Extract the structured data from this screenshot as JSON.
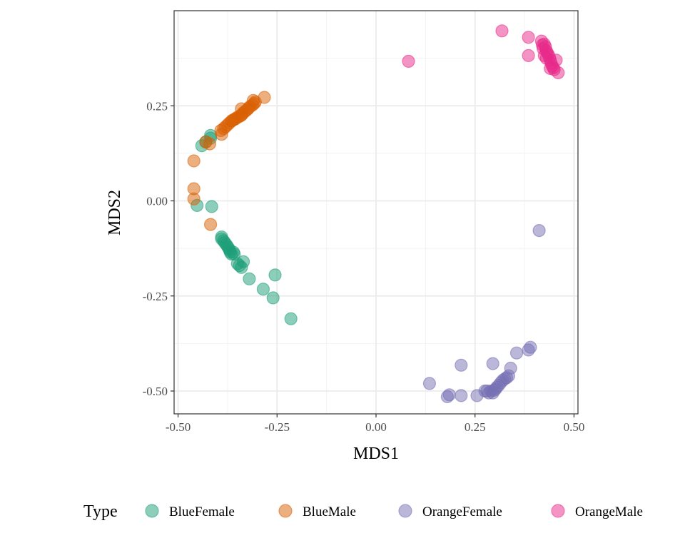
{
  "chart_data": {
    "type": "scatter",
    "xlabel": "MDS1",
    "ylabel": "MDS2",
    "xlim": [
      -0.51,
      0.51
    ],
    "ylim": [
      -0.56,
      0.5
    ],
    "x_ticks": [
      -0.5,
      -0.25,
      0.0,
      0.25,
      0.5
    ],
    "x_tick_labels": [
      "-0.50",
      "-0.25",
      "0.00",
      "0.25",
      "0.50"
    ],
    "y_ticks": [
      -0.5,
      -0.25,
      0.0,
      0.25
    ],
    "y_tick_labels": [
      "-0.50",
      "-0.25",
      "0.00",
      "0.25"
    ],
    "grid": true,
    "legend": {
      "title": "Type",
      "position": "bottom"
    },
    "series": [
      {
        "name": "BlueFemale",
        "color": "#1b9e77",
        "points": [
          [
            -0.44,
            0.145
          ],
          [
            -0.43,
            0.155
          ],
          [
            -0.418,
            0.165
          ],
          [
            -0.418,
            0.172
          ],
          [
            -0.452,
            -0.012
          ],
          [
            -0.415,
            -0.015
          ],
          [
            -0.39,
            -0.095
          ],
          [
            -0.39,
            -0.1
          ],
          [
            -0.385,
            -0.105
          ],
          [
            -0.382,
            -0.11
          ],
          [
            -0.378,
            -0.115
          ],
          [
            -0.375,
            -0.12
          ],
          [
            -0.372,
            -0.125
          ],
          [
            -0.37,
            -0.13
          ],
          [
            -0.368,
            -0.135
          ],
          [
            -0.365,
            -0.14
          ],
          [
            -0.36,
            -0.135
          ],
          [
            -0.358,
            -0.14
          ],
          [
            -0.35,
            -0.165
          ],
          [
            -0.345,
            -0.17
          ],
          [
            -0.34,
            -0.175
          ],
          [
            -0.335,
            -0.16
          ],
          [
            -0.32,
            -0.205
          ],
          [
            -0.285,
            -0.232
          ],
          [
            -0.255,
            -0.195
          ],
          [
            -0.26,
            -0.255
          ],
          [
            -0.215,
            -0.31
          ]
        ]
      },
      {
        "name": "BlueMale",
        "color": "#d95f02",
        "points": [
          [
            -0.46,
            0.105
          ],
          [
            -0.46,
            0.032
          ],
          [
            -0.46,
            0.005
          ],
          [
            -0.418,
            -0.062
          ],
          [
            -0.42,
            0.15
          ],
          [
            -0.43,
            0.155
          ],
          [
            -0.39,
            0.175
          ],
          [
            -0.392,
            0.185
          ],
          [
            -0.385,
            0.19
          ],
          [
            -0.38,
            0.195
          ],
          [
            -0.375,
            0.2
          ],
          [
            -0.37,
            0.205
          ],
          [
            -0.365,
            0.21
          ],
          [
            -0.362,
            0.212
          ],
          [
            -0.358,
            0.214
          ],
          [
            -0.355,
            0.216
          ],
          [
            -0.35,
            0.22
          ],
          [
            -0.345,
            0.222
          ],
          [
            -0.34,
            0.225
          ],
          [
            -0.338,
            0.228
          ],
          [
            -0.335,
            0.232
          ],
          [
            -0.33,
            0.236
          ],
          [
            -0.325,
            0.24
          ],
          [
            -0.322,
            0.244
          ],
          [
            -0.318,
            0.248
          ],
          [
            -0.312,
            0.252
          ],
          [
            -0.308,
            0.256
          ],
          [
            -0.305,
            0.26
          ],
          [
            -0.31,
            0.264
          ],
          [
            -0.282,
            0.272
          ],
          [
            -0.34,
            0.242
          ]
        ]
      },
      {
        "name": "OrangeFemale",
        "color": "#7570b3",
        "points": [
          [
            0.135,
            -0.48
          ],
          [
            0.18,
            -0.515
          ],
          [
            0.185,
            -0.51
          ],
          [
            0.215,
            -0.432
          ],
          [
            0.215,
            -0.512
          ],
          [
            0.255,
            -0.512
          ],
          [
            0.275,
            -0.5
          ],
          [
            0.28,
            -0.5
          ],
          [
            0.285,
            -0.505
          ],
          [
            0.29,
            -0.5
          ],
          [
            0.295,
            -0.505
          ],
          [
            0.298,
            -0.498
          ],
          [
            0.302,
            -0.495
          ],
          [
            0.305,
            -0.49
          ],
          [
            0.31,
            -0.485
          ],
          [
            0.315,
            -0.478
          ],
          [
            0.32,
            -0.472
          ],
          [
            0.325,
            -0.468
          ],
          [
            0.33,
            -0.465
          ],
          [
            0.335,
            -0.46
          ],
          [
            0.34,
            -0.44
          ],
          [
            0.295,
            -0.428
          ],
          [
            0.355,
            -0.4
          ],
          [
            0.385,
            -0.392
          ],
          [
            0.39,
            -0.385
          ],
          [
            0.412,
            -0.078
          ]
        ]
      },
      {
        "name": "OrangeMale",
        "color": "#e7298a",
        "points": [
          [
            0.082,
            0.367
          ],
          [
            0.318,
            0.447
          ],
          [
            0.385,
            0.43
          ],
          [
            0.385,
            0.382
          ],
          [
            0.418,
            0.42
          ],
          [
            0.42,
            0.41
          ],
          [
            0.422,
            0.4
          ],
          [
            0.425,
            0.412
          ],
          [
            0.428,
            0.405
          ],
          [
            0.43,
            0.395
          ],
          [
            0.432,
            0.39
          ],
          [
            0.435,
            0.385
          ],
          [
            0.438,
            0.378
          ],
          [
            0.44,
            0.37
          ],
          [
            0.442,
            0.362
          ],
          [
            0.445,
            0.355
          ],
          [
            0.448,
            0.35
          ],
          [
            0.45,
            0.345
          ],
          [
            0.455,
            0.37
          ],
          [
            0.46,
            0.337
          ],
          [
            0.43,
            0.375
          ],
          [
            0.44,
            0.348
          ],
          [
            0.425,
            0.382
          ]
        ]
      }
    ]
  }
}
